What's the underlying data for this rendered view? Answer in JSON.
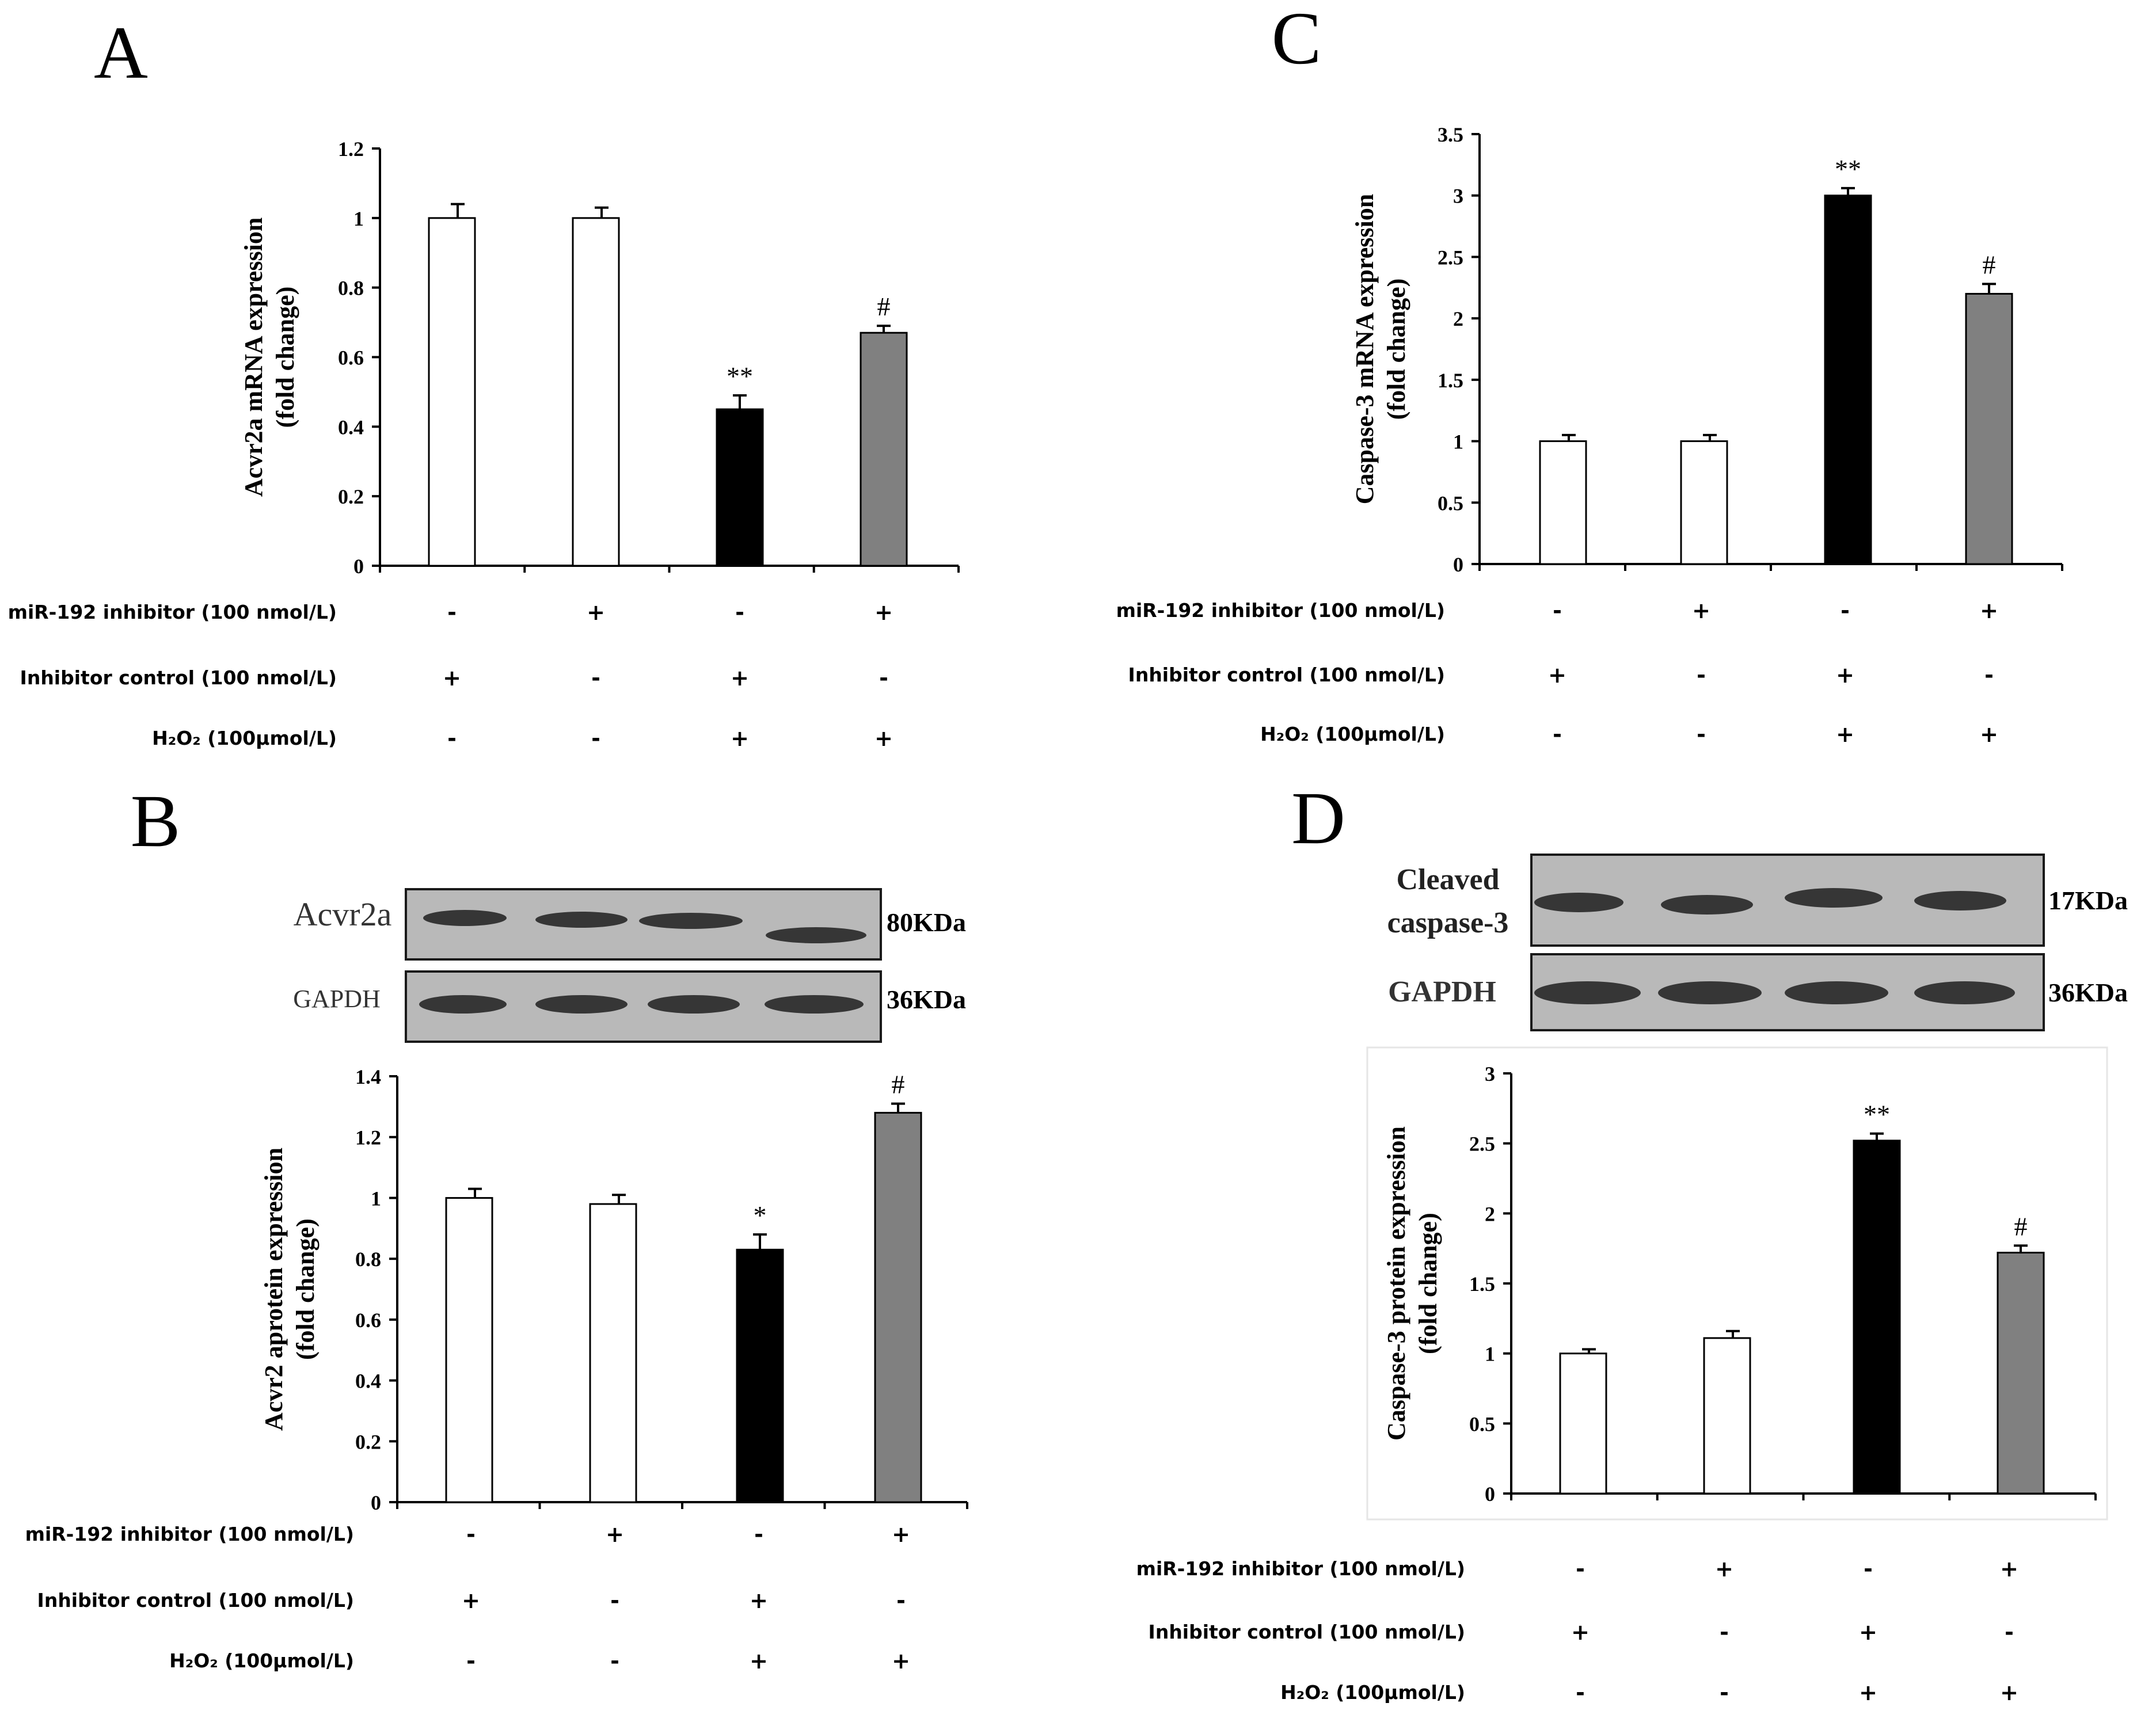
{
  "panels": [
    {
      "letter": "A",
      "ylabel_line1": "Acvr2a mRNA expression",
      "ylabel_line2": "(fold change)",
      "blot": null
    },
    {
      "letter": "B",
      "ylabel_line1": "Acvr2 aprotein expression",
      "ylabel_line2": "(fold change)",
      "blot": {
        "rows": [
          {
            "label": "Acvr2a",
            "size": "80KDa"
          },
          {
            "label": "GAPDH",
            "size": "36KDa"
          }
        ]
      }
    },
    {
      "letter": "C",
      "ylabel_line1": "Caspase-3 mRNA expression",
      "ylabel_line2": "(fold change)",
      "blot": null
    },
    {
      "letter": "D",
      "ylabel_line1": "Caspase-3 protein expression",
      "ylabel_line2": "(fold change)",
      "blot": {
        "rows": [
          {
            "label": "Cleaved",
            "label2": "caspase-3",
            "size": "17KDa"
          },
          {
            "label": "GAPDH",
            "size": "36KDa"
          }
        ]
      }
    }
  ],
  "treatments": {
    "labels": [
      "miR-192 inhibitor (100 nmol/L)",
      "Inhibitor control  (100 nmol/L)",
      "H₂O₂ (100μmol/L)"
    ],
    "signs": [
      [
        "-",
        "+",
        "-",
        "+"
      ],
      [
        "+",
        "-",
        "+",
        "-"
      ],
      [
        "-",
        "-",
        "+",
        "+"
      ]
    ]
  },
  "colors": {
    "bar_fills": [
      "#ffffff",
      "#ffffff",
      "#000000",
      "#808080"
    ],
    "axis": "#000000"
  },
  "chart_data": [
    {
      "panel": "A",
      "type": "bar",
      "categories": [
        "1",
        "2",
        "3",
        "4"
      ],
      "values": [
        1.0,
        1.0,
        0.45,
        0.67
      ],
      "errors": [
        0.04,
        0.03,
        0.04,
        0.02
      ],
      "annotations": [
        "",
        "",
        "**",
        "#"
      ],
      "ylim": [
        0,
        1.2
      ],
      "yticks": [
        0,
        0.2,
        0.4,
        0.6,
        0.8,
        1,
        1.2
      ],
      "ytick_labels": [
        "0",
        "0.2",
        "0.4",
        "0.6",
        "0.8",
        "1",
        "1.2"
      ]
    },
    {
      "panel": "B",
      "type": "bar",
      "categories": [
        "1",
        "2",
        "3",
        "4"
      ],
      "values": [
        1.0,
        0.98,
        0.83,
        1.28
      ],
      "errors": [
        0.03,
        0.03,
        0.05,
        0.03
      ],
      "annotations": [
        "",
        "",
        "*",
        "#"
      ],
      "ylim": [
        0,
        1.4
      ],
      "yticks": [
        0,
        0.2,
        0.4,
        0.6,
        0.8,
        1,
        1.2,
        1.4
      ],
      "ytick_labels": [
        "0",
        "0.2",
        "0.4",
        "0.6",
        "0.8",
        "1",
        "1.2",
        "1.4"
      ]
    },
    {
      "panel": "C",
      "type": "bar",
      "categories": [
        "1",
        "2",
        "3",
        "4"
      ],
      "values": [
        1.0,
        1.0,
        3.0,
        2.2
      ],
      "errors": [
        0.05,
        0.05,
        0.06,
        0.08
      ],
      "annotations": [
        "",
        "",
        "**",
        "#"
      ],
      "ylim": [
        0,
        3.5
      ],
      "yticks": [
        0,
        0.5,
        1,
        1.5,
        2,
        2.5,
        3,
        3.5
      ],
      "ytick_labels": [
        "0",
        "0.5",
        "1",
        "1.5",
        "2",
        "2.5",
        "3",
        "3.5"
      ]
    },
    {
      "panel": "D",
      "type": "bar",
      "categories": [
        "1",
        "2",
        "3",
        "4"
      ],
      "values": [
        1.0,
        1.11,
        2.52,
        1.72
      ],
      "errors": [
        0.03,
        0.05,
        0.05,
        0.05
      ],
      "annotations": [
        "",
        "",
        "**",
        "#"
      ],
      "ylim": [
        0,
        3
      ],
      "yticks": [
        0,
        0.5,
        1,
        1.5,
        2,
        2.5,
        3
      ],
      "ytick_labels": [
        "0",
        "0.5",
        "1",
        "1.5",
        "2",
        "2.5",
        "3"
      ]
    }
  ]
}
